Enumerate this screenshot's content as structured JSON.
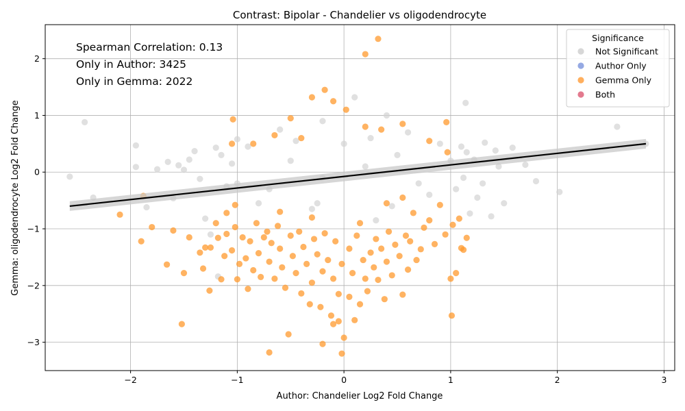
{
  "chart_data": {
    "type": "scatter",
    "title": "Contrast: Bipolar - Chandelier vs oligodendrocyte",
    "xlabel": "Author: Chandelier Log2 Fold Change",
    "ylabel": "Gemma: oligodendrocyte Log2 Fold Change",
    "xlim": [
      -2.8,
      3.1
    ],
    "ylim": [
      -3.5,
      2.6
    ],
    "x_ticks": [
      "−2",
      "−1",
      "0",
      "1",
      "2",
      "3"
    ],
    "y_ticks": [
      "−3",
      "−2",
      "−1",
      "0",
      "1",
      "2"
    ],
    "grid": true,
    "annotations": [
      "Spearman Correlation: 0.13",
      "Only in Author: 3425",
      "Only in Gemma: 2022"
    ],
    "legend": {
      "title": "Significance",
      "placement": "top-right",
      "entries": [
        {
          "label": "Not Significant",
          "color": "#d3d3d3"
        },
        {
          "label": "Author Only",
          "color": "#8aa0e0"
        },
        {
          "label": "Gemma Only",
          "color": "#ffa64d"
        },
        {
          "label": "Both",
          "color": "#e06c82"
        }
      ]
    },
    "regression_line": {
      "x": [
        -2.57,
        2.83
      ],
      "y": [
        -0.6,
        0.5
      ],
      "color": "#000000"
    },
    "series": [
      {
        "name": "Gemma Only",
        "color": "#ff9a2e",
        "points": [
          [
            0.32,
            2.35
          ],
          [
            0.2,
            2.08
          ],
          [
            -0.18,
            1.45
          ],
          [
            -0.3,
            1.32
          ],
          [
            -0.1,
            1.25
          ],
          [
            0.02,
            1.1
          ],
          [
            -1.04,
            0.93
          ],
          [
            0.96,
            0.88
          ],
          [
            -0.5,
            0.95
          ],
          [
            0.55,
            0.85
          ],
          [
            0.35,
            0.75
          ],
          [
            -0.65,
            0.65
          ],
          [
            0.2,
            0.8
          ],
          [
            -0.4,
            0.6
          ],
          [
            0.8,
            0.55
          ],
          [
            0.97,
            0.35
          ],
          [
            -0.85,
            0.5
          ],
          [
            -1.05,
            0.5
          ],
          [
            -2.1,
            -0.75
          ],
          [
            -1.9,
            -1.22
          ],
          [
            -1.8,
            -0.97
          ],
          [
            -1.88,
            -0.42
          ],
          [
            -1.66,
            -1.63
          ],
          [
            -1.6,
            -1.03
          ],
          [
            -1.5,
            -1.78
          ],
          [
            -1.52,
            -2.68
          ],
          [
            -1.45,
            -1.15
          ],
          [
            -1.35,
            -1.42
          ],
          [
            -1.32,
            -1.7
          ],
          [
            -1.3,
            -1.33
          ],
          [
            -1.26,
            -2.09
          ],
          [
            -1.25,
            -1.33
          ],
          [
            -1.18,
            -1.16
          ],
          [
            -1.15,
            -1.89
          ],
          [
            -1.12,
            -1.48
          ],
          [
            -1.1,
            -1.09
          ],
          [
            -1.05,
            -1.38
          ],
          [
            -1.02,
            -0.97
          ],
          [
            -1.0,
            -1.89
          ],
          [
            -0.98,
            -1.62
          ],
          [
            -0.95,
            -1.15
          ],
          [
            -0.92,
            -1.52
          ],
          [
            -0.9,
            -2.06
          ],
          [
            -0.88,
            -1.22
          ],
          [
            -0.85,
            -1.73
          ],
          [
            -0.82,
            -0.9
          ],
          [
            -0.8,
            -1.43
          ],
          [
            -0.78,
            -1.85
          ],
          [
            -0.75,
            -1.15
          ],
          [
            -0.72,
            -1.05
          ],
          [
            -0.7,
            -1.58
          ],
          [
            -0.7,
            -3.18
          ],
          [
            -0.68,
            -1.25
          ],
          [
            -0.65,
            -1.88
          ],
          [
            -0.62,
            -0.95
          ],
          [
            -0.6,
            -1.35
          ],
          [
            -0.58,
            -1.68
          ],
          [
            -0.55,
            -2.04
          ],
          [
            -0.52,
            -2.86
          ],
          [
            -0.5,
            -1.12
          ],
          [
            -0.48,
            -1.48
          ],
          [
            -0.45,
            -1.78
          ],
          [
            -0.42,
            -1.05
          ],
          [
            -0.4,
            -2.14
          ],
          [
            -0.38,
            -1.32
          ],
          [
            -0.35,
            -1.62
          ],
          [
            -0.32,
            -2.33
          ],
          [
            -0.3,
            -1.95
          ],
          [
            -0.28,
            -1.18
          ],
          [
            -0.25,
            -1.45
          ],
          [
            -0.22,
            -2.38
          ],
          [
            -0.2,
            -1.75
          ],
          [
            -0.2,
            -3.03
          ],
          [
            -0.18,
            -1.08
          ],
          [
            -0.15,
            -1.55
          ],
          [
            -0.12,
            -2.53
          ],
          [
            -0.1,
            -1.88
          ],
          [
            -0.1,
            -2.68
          ],
          [
            -0.08,
            -1.22
          ],
          [
            -0.05,
            -2.15
          ],
          [
            -0.05,
            -2.63
          ],
          [
            -0.02,
            -1.62
          ],
          [
            0.0,
            -2.92
          ],
          [
            -0.02,
            -3.2
          ],
          [
            0.05,
            -1.35
          ],
          [
            0.05,
            -2.2
          ],
          [
            0.08,
            -1.78
          ],
          [
            0.1,
            -2.61
          ],
          [
            0.12,
            -1.12
          ],
          [
            0.15,
            -2.33
          ],
          [
            0.18,
            -1.55
          ],
          [
            0.2,
            -1.88
          ],
          [
            0.22,
            -2.1
          ],
          [
            0.25,
            -1.42
          ],
          [
            0.28,
            -1.68
          ],
          [
            0.3,
            -1.18
          ],
          [
            0.32,
            -1.9
          ],
          [
            0.35,
            -1.35
          ],
          [
            0.38,
            -2.24
          ],
          [
            0.4,
            -1.58
          ],
          [
            0.42,
            -1.05
          ],
          [
            0.45,
            -1.82
          ],
          [
            0.48,
            -1.28
          ],
          [
            0.52,
            -1.48
          ],
          [
            0.55,
            -2.16
          ],
          [
            0.58,
            -1.12
          ],
          [
            0.6,
            -1.72
          ],
          [
            0.62,
            -1.22
          ],
          [
            0.68,
            -1.55
          ],
          [
            0.72,
            -1.36
          ],
          [
            0.8,
            -0.85
          ],
          [
            0.85,
            -1.27
          ],
          [
            0.95,
            -1.1
          ],
          [
            1.0,
            -1.88
          ],
          [
            1.01,
            -2.53
          ],
          [
            1.05,
            -1.78
          ],
          [
            1.1,
            -1.34
          ],
          [
            1.15,
            -1.16
          ],
          [
            1.12,
            -1.37
          ],
          [
            1.08,
            -0.82
          ],
          [
            1.02,
            -0.93
          ],
          [
            0.9,
            -0.58
          ],
          [
            0.75,
            -0.98
          ],
          [
            0.65,
            -0.72
          ],
          [
            0.55,
            -0.45
          ],
          [
            -1.02,
            -0.58
          ],
          [
            -1.1,
            -0.72
          ],
          [
            -1.2,
            -0.9
          ],
          [
            -0.6,
            -0.7
          ],
          [
            -0.3,
            -0.8
          ],
          [
            0.15,
            -0.9
          ],
          [
            0.4,
            -0.55
          ]
        ]
      },
      {
        "name": "Not Significant",
        "color": "#d3d3d3",
        "points": [
          [
            -2.57,
            -0.08
          ],
          [
            -2.43,
            0.88
          ],
          [
            -2.35,
            -0.45
          ],
          [
            -1.95,
            0.47
          ],
          [
            -1.95,
            0.09
          ],
          [
            -1.85,
            -0.62
          ],
          [
            -1.75,
            0.05
          ],
          [
            -1.65,
            0.18
          ],
          [
            -1.6,
            -0.46
          ],
          [
            -1.55,
            0.12
          ],
          [
            -1.5,
            0.04
          ],
          [
            -1.45,
            0.22
          ],
          [
            -1.4,
            0.37
          ],
          [
            -1.35,
            -0.12
          ],
          [
            -1.3,
            -0.82
          ],
          [
            -1.25,
            -1.1
          ],
          [
            -1.2,
            0.43
          ],
          [
            -1.18,
            -1.84
          ],
          [
            -1.15,
            0.3
          ],
          [
            -1.1,
            -0.25
          ],
          [
            -1.05,
            0.15
          ],
          [
            -1.0,
            0.58
          ],
          [
            1.14,
            1.22
          ],
          [
            2.56,
            0.8
          ],
          [
            2.83,
            0.5
          ],
          [
            2.02,
            -0.35
          ],
          [
            1.8,
            -0.16
          ],
          [
            1.7,
            0.13
          ],
          [
            1.58,
            0.43
          ],
          [
            1.5,
            -0.55
          ],
          [
            1.45,
            0.1
          ],
          [
            1.42,
            0.38
          ],
          [
            1.38,
            -0.78
          ],
          [
            1.32,
            0.52
          ],
          [
            1.3,
            -0.2
          ],
          [
            1.25,
            -0.45
          ],
          [
            1.22,
            0.22
          ],
          [
            1.18,
            -0.73
          ],
          [
            1.15,
            0.35
          ],
          [
            1.12,
            -0.1
          ],
          [
            1.1,
            0.45
          ],
          [
            1.05,
            -0.3
          ],
          [
            0.1,
            1.32
          ],
          [
            0.4,
            1.0
          ],
          [
            -0.2,
            0.9
          ],
          [
            0.6,
            0.7
          ],
          [
            -0.6,
            0.75
          ],
          [
            0.9,
            0.5
          ],
          [
            -0.9,
            0.45
          ],
          [
            0.8,
            -0.4
          ],
          [
            -0.8,
            -0.55
          ],
          [
            0.3,
            -0.85
          ],
          [
            -0.3,
            -0.65
          ],
          [
            0.0,
            0.5
          ],
          [
            0.5,
            0.3
          ],
          [
            -0.5,
            0.2
          ],
          [
            0.7,
            -0.2
          ],
          [
            -0.7,
            -0.3
          ],
          [
            0.2,
            0.1
          ],
          [
            -0.2,
            -0.1
          ],
          [
            1.0,
            0.2
          ],
          [
            -1.0,
            -0.2
          ],
          [
            0.45,
            -0.6
          ],
          [
            -0.45,
            0.55
          ],
          [
            0.25,
            0.6
          ],
          [
            -0.25,
            -0.55
          ]
        ]
      }
    ]
  }
}
